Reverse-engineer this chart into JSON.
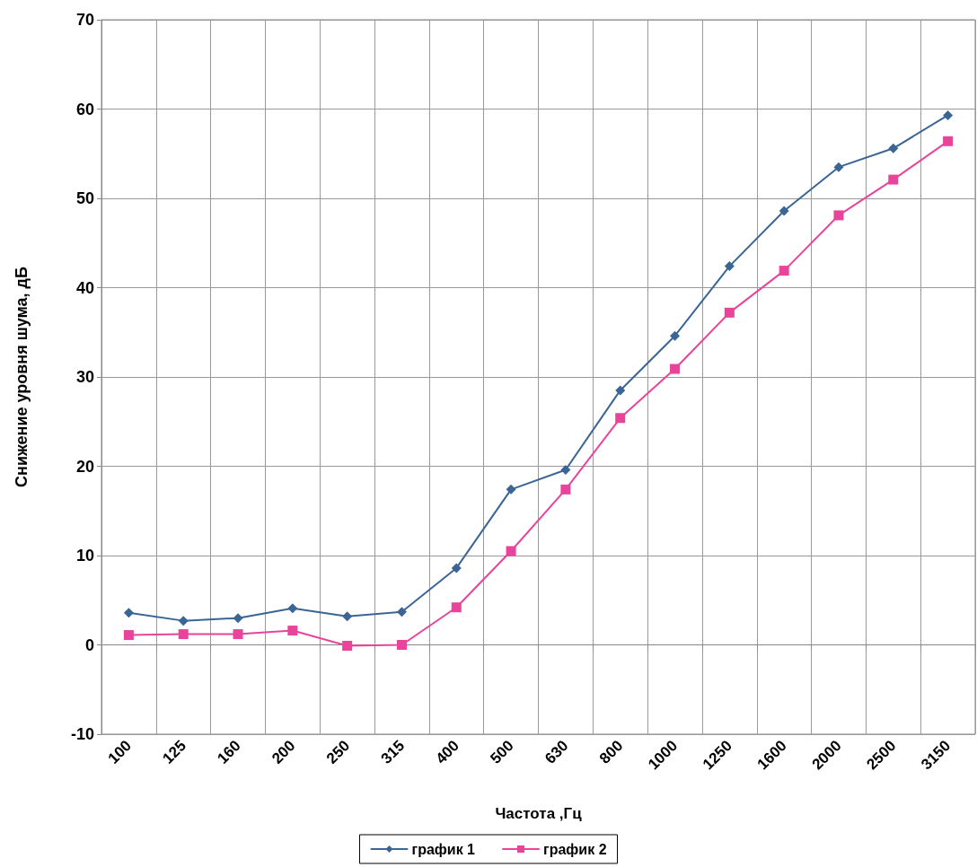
{
  "chart_data": {
    "type": "line",
    "xlabel": "Частота ,Гц",
    "ylabel": "Снижение уровня шума, дБ",
    "categories": [
      "100",
      "125",
      "160",
      "200",
      "250",
      "315",
      "400",
      "500",
      "630",
      "800",
      "1000",
      "1250",
      "1600",
      "2000",
      "2500",
      "3150"
    ],
    "series": [
      {
        "name": "график 1",
        "color": "#3a6594",
        "marker": "diamond",
        "values": [
          3.6,
          2.7,
          3.0,
          4.1,
          3.2,
          3.7,
          8.6,
          17.4,
          19.6,
          28.5,
          34.6,
          42.4,
          48.6,
          53.5,
          55.6,
          59.3
        ]
      },
      {
        "name": "график 2",
        "color": "#e8449a",
        "marker": "square",
        "values": [
          1.1,
          1.2,
          1.2,
          1.6,
          -0.1,
          0,
          4.2,
          10.5,
          17.4,
          25.4,
          30.9,
          37.2,
          41.9,
          48.1,
          52.1,
          56.4
        ]
      }
    ],
    "ylim": [
      -10,
      70
    ],
    "yticks": [
      -10,
      0,
      10,
      20,
      30,
      40,
      50,
      60,
      70
    ],
    "grid": true,
    "legend": "bottom",
    "line_style": "solid"
  }
}
